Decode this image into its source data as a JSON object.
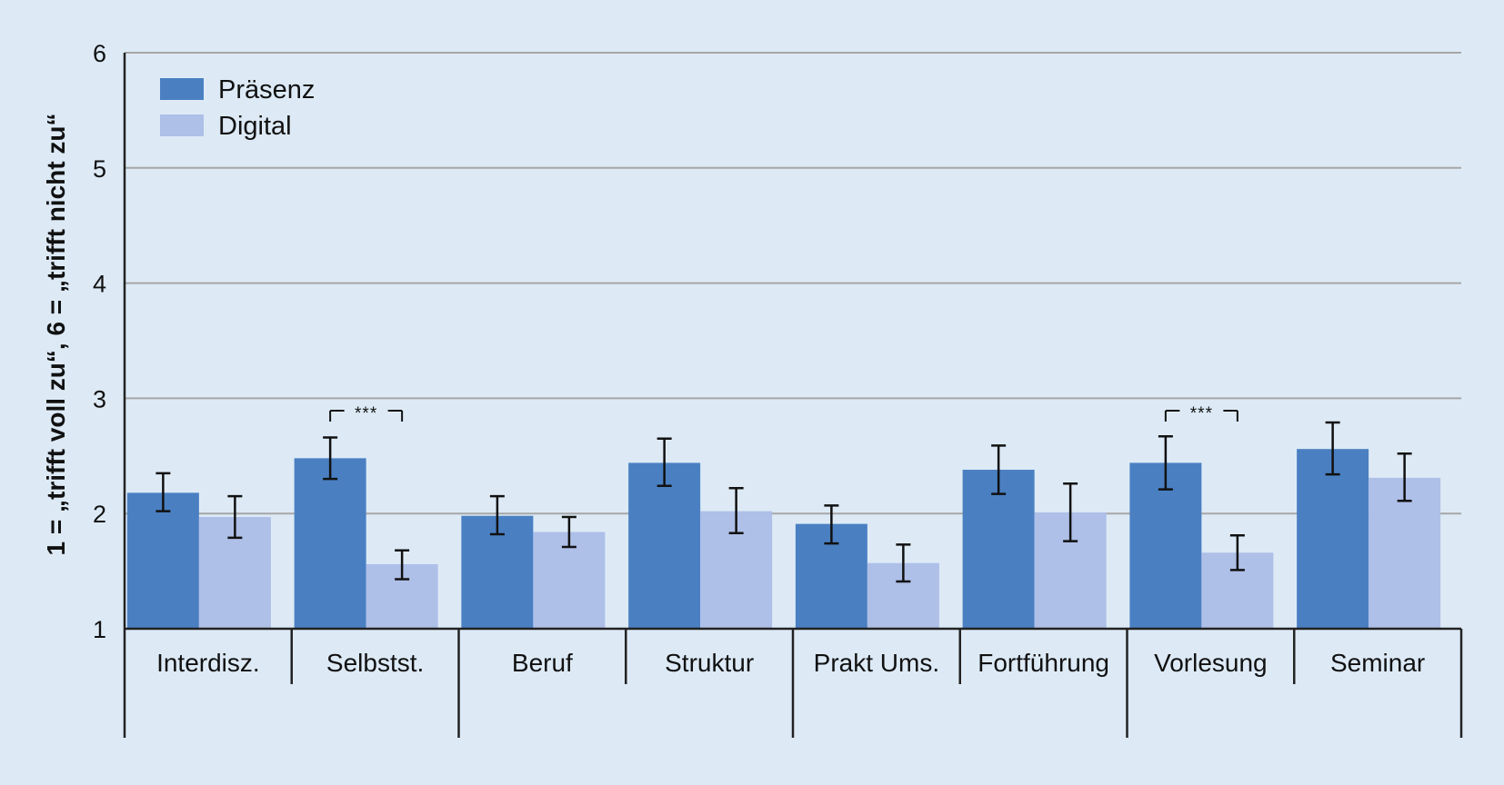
{
  "chart_data": {
    "type": "bar",
    "ylabel": "1 = „trifft voll zu“, 6 = „trifft nicht zu“",
    "ylim": [
      1,
      6
    ],
    "yticks": [
      1,
      2,
      3,
      4,
      5,
      6
    ],
    "grid": true,
    "legend_position": "top-left",
    "categories": [
      "Interdisz.",
      "Selbstst.",
      "Beruf",
      "Struktur",
      "Prakt Ums.",
      "Fortführung",
      "Vorlesung",
      "Seminar"
    ],
    "series": [
      {
        "name": "Präsenz",
        "color": "#4a80c2",
        "values": [
          2.18,
          2.48,
          1.98,
          2.44,
          1.91,
          2.38,
          2.44,
          2.56
        ],
        "error_low": [
          2.02,
          2.3,
          1.82,
          2.24,
          1.74,
          2.17,
          2.21,
          2.34
        ],
        "error_high": [
          2.35,
          2.66,
          2.15,
          2.65,
          2.07,
          2.59,
          2.67,
          2.79
        ]
      },
      {
        "name": "Digital",
        "color": "#aebfe8",
        "values": [
          1.97,
          1.56,
          1.84,
          2.02,
          1.57,
          2.01,
          1.66,
          2.31
        ],
        "error_low": [
          1.79,
          1.43,
          1.71,
          1.83,
          1.41,
          1.76,
          1.51,
          2.11
        ],
        "error_high": [
          2.15,
          1.68,
          1.97,
          2.22,
          1.73,
          2.26,
          1.81,
          2.52
        ]
      }
    ],
    "annotations": [
      {
        "category": "Selbstst.",
        "text": "***"
      },
      {
        "category": "Vorlesung",
        "text": "***"
      }
    ],
    "category_groups": [
      [
        "Interdisz.",
        "Selbstst."
      ],
      [
        "Beruf",
        "Struktur"
      ],
      [
        "Prakt Ums.",
        "Fortführung"
      ],
      [
        "Vorlesung",
        "Seminar"
      ]
    ]
  }
}
